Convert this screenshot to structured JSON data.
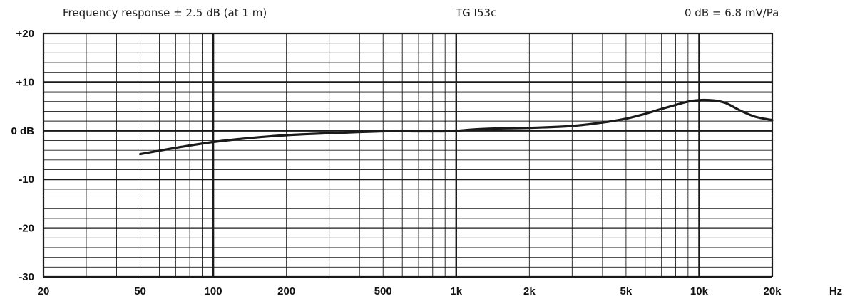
{
  "chart_data": {
    "type": "line",
    "title_left": "Frequency response ± 2.5 dB (at 1 m)",
    "title_center": "TG I53c",
    "title_right": "0 dB =  6.8 mV/Pa",
    "x_scale": "log",
    "xlim": [
      20,
      20000
    ],
    "ylim": [
      -30,
      20
    ],
    "x_unit": "Hz",
    "y_ticks": [
      {
        "value": 20,
        "label": "+20"
      },
      {
        "value": 10,
        "label": "+10"
      },
      {
        "value": 0,
        "label": "0 dB"
      },
      {
        "value": -10,
        "label": "-10"
      },
      {
        "value": -20,
        "label": "-20"
      },
      {
        "value": -30,
        "label": "-30"
      }
    ],
    "x_ticks": [
      {
        "value": 20,
        "label": "20"
      },
      {
        "value": 50,
        "label": "50"
      },
      {
        "value": 100,
        "label": "100"
      },
      {
        "value": 200,
        "label": "200"
      },
      {
        "value": 500,
        "label": "500"
      },
      {
        "value": 1000,
        "label": "1k"
      },
      {
        "value": 2000,
        "label": "2k"
      },
      {
        "value": 5000,
        "label": "5k"
      },
      {
        "value": 10000,
        "label": "10k"
      },
      {
        "value": 20000,
        "label": "20k"
      }
    ],
    "grid": true,
    "series": [
      {
        "x": [
          50,
          70,
          100,
          140,
          200,
          300,
          500,
          700,
          900,
          1000,
          1200,
          1500,
          2000,
          3000,
          4000,
          5000,
          6000,
          7000,
          8000,
          9000,
          10000,
          11000,
          12000,
          13000,
          15000,
          17000,
          20000
        ],
        "y": [
          -4.8,
          -3.5,
          -2.3,
          -1.5,
          -0.9,
          -0.5,
          -0.1,
          -0.1,
          -0.1,
          0,
          0.3,
          0.5,
          0.6,
          1.0,
          1.7,
          2.5,
          3.5,
          4.5,
          5.3,
          6.0,
          6.3,
          6.3,
          6.1,
          5.6,
          4.0,
          2.9,
          2.2
        ]
      }
    ]
  }
}
